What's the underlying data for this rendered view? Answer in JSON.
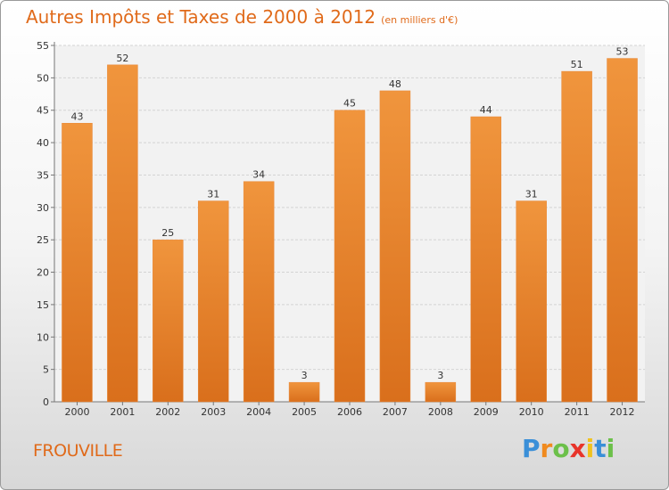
{
  "title": "Autres Impôts et Taxes de 2000 à 2012",
  "unit": "(en milliers d'€)",
  "location": "FROUVILLE",
  "logo": {
    "letters": [
      "P",
      "r",
      "o",
      "x",
      "i",
      "t",
      "i"
    ],
    "colors": [
      "#3a8fd8",
      "#f08a1e",
      "#6cc04a",
      "#e8342a",
      "#f0c21e",
      "#3a8fd8",
      "#6cc04a"
    ]
  },
  "colors": {
    "bar": "#f0953d",
    "bar_dark": "#d96f1c",
    "text_accent": "#e06a1a"
  },
  "chart_data": {
    "type": "bar",
    "title": "Autres Impôts et Taxes de 2000 à 2012",
    "xlabel": "",
    "ylabel": "",
    "categories": [
      "2000",
      "2001",
      "2002",
      "2003",
      "2004",
      "2005",
      "2006",
      "2007",
      "2008",
      "2009",
      "2010",
      "2011",
      "2012"
    ],
    "values": [
      43,
      52,
      25,
      31,
      34,
      3,
      45,
      48,
      3,
      44,
      31,
      51,
      53
    ],
    "ylim": [
      0,
      55
    ],
    "yticks": [
      0,
      5,
      10,
      15,
      20,
      25,
      30,
      35,
      40,
      45,
      50,
      55
    ],
    "grid": true,
    "legend": "none"
  }
}
